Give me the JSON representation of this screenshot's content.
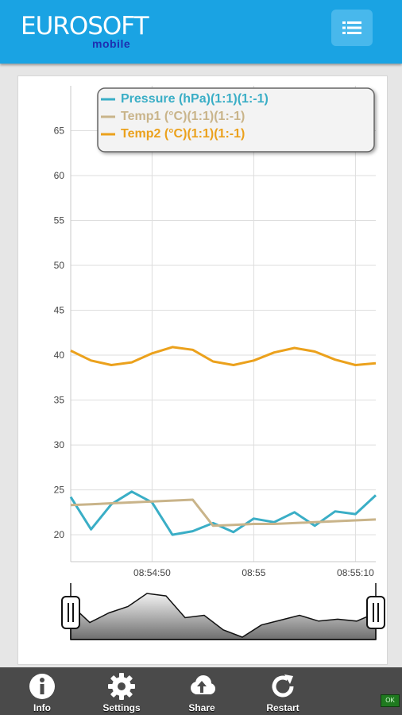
{
  "app": {
    "logo_main": "EUROSOFT",
    "logo_sub": "mobile"
  },
  "header": {
    "menu_icon": "list-icon"
  },
  "chart_data": {
    "type": "line",
    "x": [
      "08:54:42",
      "08:54:44",
      "08:54:46",
      "08:54:48",
      "08:54:50",
      "08:54:52",
      "08:54:54",
      "08:54:56",
      "08:54:58",
      "08:55:00",
      "08:55:02",
      "08:55:04",
      "08:55:06",
      "08:55:08",
      "08:55:10",
      "08:55:12"
    ],
    "xticks": [
      "08:54:50",
      "08:55",
      "08:55:10"
    ],
    "yticks": [
      "20",
      "25",
      "30",
      "35",
      "40",
      "45",
      "50",
      "55",
      "60",
      "65"
    ],
    "ylim": [
      17,
      70
    ],
    "series": [
      {
        "name": "Pressure (hPa)(1:1)(1:-1)",
        "color": "#3aaec6",
        "values": [
          24.2,
          20.6,
          23.4,
          24.8,
          23.6,
          20.0,
          20.4,
          21.3,
          20.3,
          21.8,
          21.4,
          22.5,
          21.0,
          22.6,
          22.3,
          24.4
        ]
      },
      {
        "name": "Temp1 (°C)(1:1)(1:-1)",
        "color": "#c9b48a",
        "values": [
          23.3,
          23.4,
          23.5,
          23.6,
          23.7,
          23.8,
          23.9,
          21.0,
          21.1,
          21.2,
          21.2,
          21.3,
          21.4,
          21.5,
          21.6,
          21.7
        ]
      },
      {
        "name": "Temp2 (°C)(1:1)(1:-1)",
        "color": "#eba11c",
        "values": [
          40.5,
          39.4,
          38.9,
          39.2,
          40.2,
          40.9,
          40.6,
          39.3,
          38.9,
          39.4,
          40.3,
          40.8,
          40.4,
          39.5,
          38.9,
          39.1
        ]
      }
    ]
  },
  "navigator": {
    "values": [
      0.72,
      0.35,
      0.55,
      0.68,
      0.95,
      0.9,
      0.45,
      0.5,
      0.2,
      0.05,
      0.3,
      0.4,
      0.5,
      0.38,
      0.42,
      0.38,
      0.55
    ]
  },
  "footer": {
    "buttons": [
      {
        "label": "Info",
        "icon": "info-icon"
      },
      {
        "label": "Settings",
        "icon": "gear-icon"
      },
      {
        "label": "Share",
        "icon": "cloud-upload-icon"
      },
      {
        "label": "Restart",
        "icon": "refresh-icon"
      }
    ],
    "status": "OK"
  }
}
